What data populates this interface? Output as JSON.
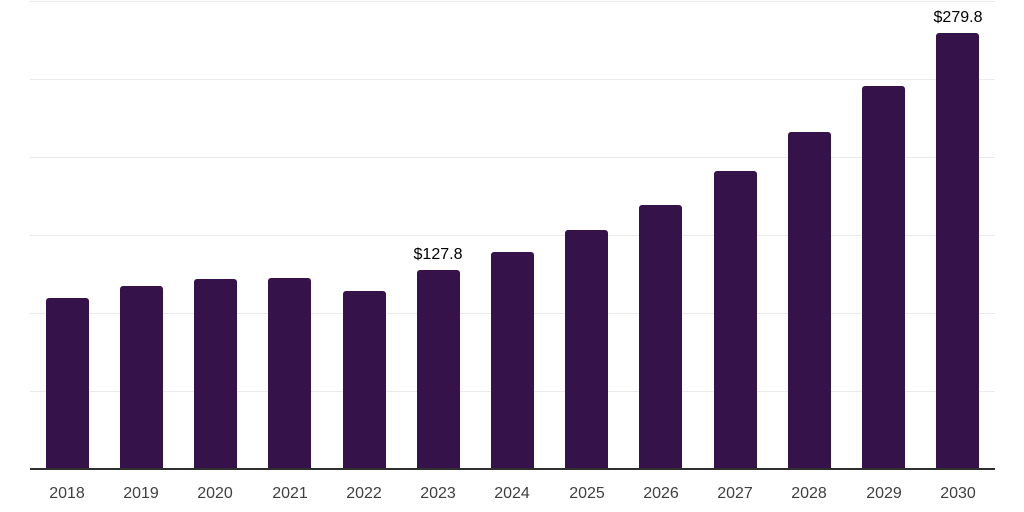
{
  "chart_data": {
    "type": "bar",
    "title": "",
    "xlabel": "",
    "ylabel": "",
    "categories": [
      "2018",
      "2019",
      "2020",
      "2021",
      "2022",
      "2023",
      "2024",
      "2025",
      "2026",
      "2027",
      "2028",
      "2029",
      "2030"
    ],
    "values": [
      109.4,
      117.6,
      121.5,
      122.2,
      114.0,
      127.8,
      139.4,
      153.5,
      169.5,
      191.3,
      216.2,
      245.6,
      279.8
    ],
    "data_labels": {
      "2023": "$127.8",
      "2030": "$279.8"
    },
    "ylim": [
      0,
      300
    ],
    "gridline_interval": 50,
    "grid": true,
    "legend_position": "none",
    "y_axis_tick_labels_visible": false,
    "colors": {
      "bar": "#36124a",
      "axis_line": "#2f2f2f",
      "gridline": "#ebebeb",
      "data_label": "#000000",
      "tick_label": "#3f3f3f",
      "background": "#ffffff"
    }
  }
}
